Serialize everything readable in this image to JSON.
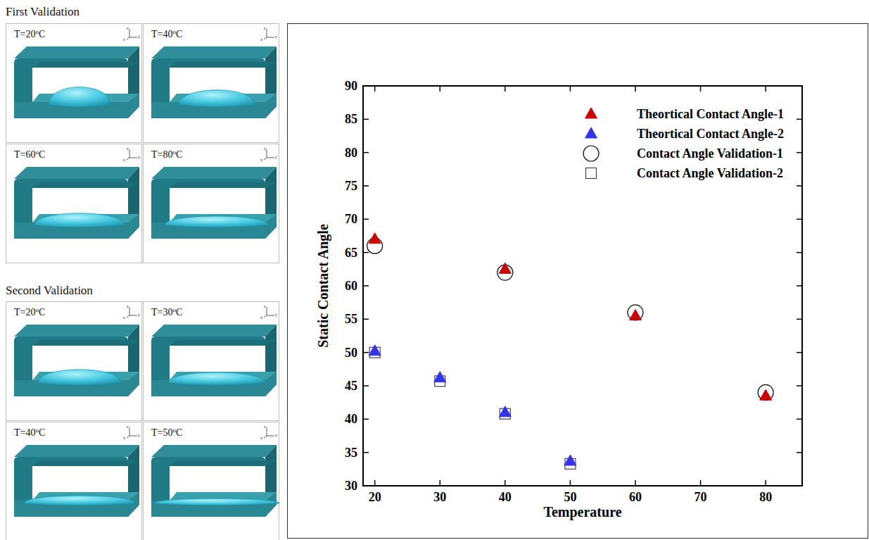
{
  "chart_data": {
    "type": "scatter",
    "xlabel": "Temperature",
    "ylabel": "Static Contact Angle",
    "xlim": [
      18.2,
      85.6
    ],
    "xticks": [
      20,
      30,
      40,
      50,
      60,
      70,
      80
    ],
    "ylim": [
      30,
      90
    ],
    "yticks": [
      30,
      35,
      40,
      45,
      50,
      55,
      60,
      65,
      70,
      75,
      80,
      85,
      90
    ],
    "grid": false,
    "legend": "top-right",
    "series": [
      {
        "name": "Theortical Contact Angle-1",
        "color": "#cc0000",
        "marker": "triangle",
        "x": [
          20,
          40,
          60,
          80
        ],
        "values": [
          67,
          62.5,
          55.5,
          43.5
        ]
      },
      {
        "name": "Theortical Contact Angle-2",
        "color": "#3333ee",
        "marker": "triangle",
        "x": [
          20,
          30,
          40,
          50
        ],
        "values": [
          50.2,
          46.2,
          41,
          33.7
        ]
      },
      {
        "name": "Contact Angle Validation-1",
        "color": "#111111",
        "marker": "circle",
        "x": [
          20,
          40,
          60,
          80
        ],
        "values": [
          66,
          62,
          56,
          44
        ]
      },
      {
        "name": "Contact Angle Validation-2",
        "color": "#4a3a66",
        "marker": "square",
        "x": [
          20,
          30,
          40,
          50
        ],
        "values": [
          50,
          45.7,
          40.8,
          33.3
        ]
      }
    ]
  },
  "validations": [
    {
      "title": "First Validation",
      "panels": [
        {
          "label": "T=20oC"
        },
        {
          "label": "T=40oC"
        },
        {
          "label": "T=60oC"
        },
        {
          "label": "T=80oC"
        }
      ]
    },
    {
      "title": "Second Validation",
      "panels": [
        {
          "label": "T=20oC"
        },
        {
          "label": "T=30oC"
        },
        {
          "label": "T=40oC"
        },
        {
          "label": "T=50oC"
        }
      ]
    }
  ],
  "triad_labels": [
    "z",
    "y",
    "x"
  ]
}
